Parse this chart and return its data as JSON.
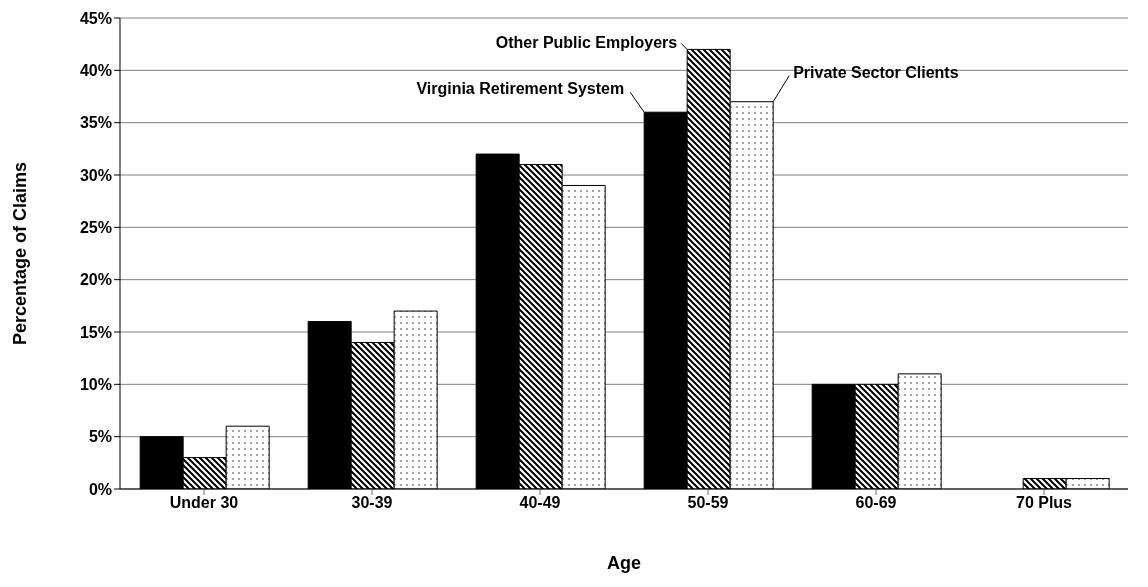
{
  "chart_data": {
    "type": "bar",
    "xlabel": "Age",
    "ylabel": "Percentage of Claims",
    "categories": [
      "Under 30",
      "30-39",
      "40-49",
      "50-59",
      "60-69",
      "70 Plus"
    ],
    "series": [
      {
        "name": "Virginia Retirement System",
        "color": "#000000",
        "values": [
          5,
          16,
          32,
          36,
          10,
          0
        ]
      },
      {
        "name": "Other Public Employers",
        "color": "#000000",
        "values": [
          3,
          14,
          31,
          42,
          10,
          1
        ]
      },
      {
        "name": "Private Sector Clients",
        "color": "#000000",
        "values": [
          6,
          17,
          29,
          37,
          11,
          1
        ]
      }
    ],
    "ylim": [
      0,
      45
    ],
    "yticks": [
      {
        "value": 0,
        "label": "0%"
      },
      {
        "value": 5,
        "label": "5%"
      },
      {
        "value": 10,
        "label": "10%"
      },
      {
        "value": 15,
        "label": "15%"
      },
      {
        "value": 20,
        "label": "20%"
      },
      {
        "value": 25,
        "label": "25%"
      },
      {
        "value": 30,
        "label": "30%"
      },
      {
        "value": 35,
        "label": "35%"
      },
      {
        "value": 40,
        "label": "40%"
      },
      {
        "value": 45,
        "label": "45%"
      }
    ],
    "grid": "y",
    "legend": false
  }
}
